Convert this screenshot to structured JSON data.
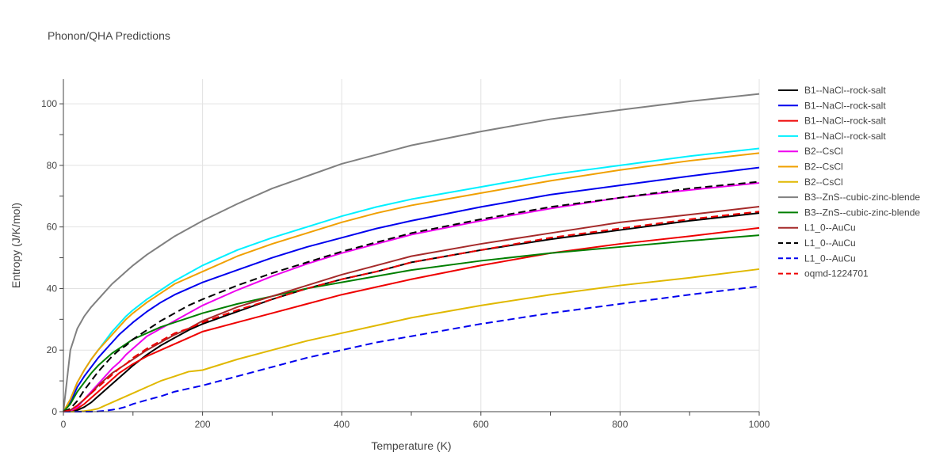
{
  "chart_data": {
    "type": "line",
    "title": "Phonon/QHA Predictions",
    "xlabel": "Temperature (K)",
    "ylabel": "Entropy (J/K/mol)",
    "xlim": [
      0,
      1000
    ],
    "ylim": [
      0,
      108
    ],
    "x_ticks": [
      0,
      200,
      400,
      600,
      800,
      1000
    ],
    "y_ticks": [
      0,
      20,
      40,
      60,
      80,
      100
    ],
    "grid": true,
    "legend_position": "right",
    "x": [
      0,
      10,
      20,
      30,
      40,
      50,
      60,
      70,
      80,
      90,
      100,
      120,
      140,
      160,
      180,
      200,
      250,
      300,
      350,
      400,
      450,
      500,
      600,
      700,
      800,
      900,
      1000
    ],
    "series": [
      {
        "name": "B1--NaCl--rock-salt",
        "color": "#000000",
        "dash": "solid",
        "values": [
          0,
          0.1,
          0.5,
          1.5,
          3.0,
          5.0,
          7.0,
          9.0,
          11.0,
          13.0,
          15.0,
          18.5,
          21.5,
          24.0,
          26.5,
          28.5,
          32.5,
          36.5,
          40.0,
          43.0,
          45.5,
          48.5,
          52.5,
          56.0,
          59.0,
          62.0,
          64.5
        ]
      },
      {
        "name": "B1--NaCl--rock-salt",
        "color": "#0000ee",
        "dash": "solid",
        "values": [
          0,
          3.0,
          8.0,
          11.5,
          14.5,
          17.5,
          20.0,
          22.5,
          25.0,
          27.0,
          29.0,
          32.5,
          35.5,
          38.0,
          40.0,
          42.0,
          46.0,
          50.0,
          53.5,
          56.5,
          59.5,
          62.0,
          66.5,
          70.5,
          73.5,
          76.5,
          79.3
        ]
      },
      {
        "name": "B1--NaCl--rock-salt",
        "color": "#ee0000",
        "dash": "solid",
        "values": [
          0,
          0.2,
          1.0,
          2.5,
          4.5,
          6.5,
          8.5,
          10.5,
          12.5,
          14.0,
          15.5,
          18.0,
          20.0,
          22.0,
          24.0,
          26.0,
          29.0,
          32.0,
          35.0,
          38.0,
          40.5,
          43.0,
          47.5,
          51.5,
          54.5,
          57.0,
          59.7
        ]
      },
      {
        "name": "B1--NaCl--rock-salt",
        "color": "#00f0ff",
        "dash": "solid",
        "values": [
          0,
          4.0,
          9.5,
          13.5,
          17.0,
          20.0,
          23.0,
          26.0,
          28.5,
          31.0,
          33.0,
          36.5,
          39.5,
          42.5,
          45.0,
          47.5,
          52.5,
          56.5,
          60.0,
          63.5,
          66.5,
          69.0,
          73.0,
          77.0,
          80.0,
          83.0,
          85.5
        ]
      },
      {
        "name": "B2--CsCl",
        "color": "#ee00ee",
        "dash": "solid",
        "values": [
          0,
          0.3,
          1.5,
          4.0,
          6.5,
          9.0,
          11.5,
          14.0,
          16.0,
          18.5,
          20.5,
          24.5,
          27.0,
          29.5,
          32.0,
          34.5,
          39.5,
          44.0,
          48.0,
          51.5,
          54.5,
          57.5,
          62.0,
          66.0,
          69.5,
          72.0,
          74.3
        ]
      },
      {
        "name": "B2--CsCl",
        "color": "#f0a000",
        "dash": "solid",
        "values": [
          0,
          4.0,
          9.5,
          13.5,
          17.0,
          20.0,
          22.5,
          25.0,
          27.5,
          30.0,
          32.0,
          35.5,
          38.5,
          41.5,
          43.5,
          45.5,
          50.5,
          54.5,
          58.0,
          61.5,
          64.5,
          67.0,
          71.0,
          75.0,
          78.5,
          81.5,
          84.0
        ]
      },
      {
        "name": "B2--CsCl",
        "color": "#e0b800",
        "dash": "solid",
        "values": [
          0,
          0,
          0,
          0.2,
          0.5,
          1.0,
          2.0,
          3.0,
          4.0,
          5.0,
          6.0,
          8.0,
          10.0,
          11.5,
          13.0,
          13.5,
          17.0,
          20.0,
          23.0,
          25.5,
          28.0,
          30.5,
          34.5,
          38.0,
          41.0,
          43.5,
          46.3
        ]
      },
      {
        "name": "B3--ZnS--cubic-zinc-blende",
        "color": "#808080",
        "dash": "solid",
        "values": [
          0,
          20.0,
          27.0,
          31.0,
          34.0,
          36.5,
          39.0,
          41.5,
          43.5,
          45.5,
          47.5,
          51.0,
          54.0,
          57.0,
          59.5,
          62.0,
          67.5,
          72.5,
          76.5,
          80.5,
          83.5,
          86.5,
          91.0,
          95.0,
          98.0,
          100.8,
          103.2
        ]
      },
      {
        "name": "B3--ZnS--cubic-zinc-blende",
        "color": "#007f00",
        "dash": "solid",
        "values": [
          0,
          2.5,
          6.5,
          9.5,
          12.5,
          15.0,
          17.0,
          19.0,
          20.5,
          22.0,
          23.5,
          25.5,
          27.5,
          29.0,
          30.5,
          32.0,
          35.0,
          37.5,
          40.0,
          42.0,
          44.0,
          46.0,
          49.0,
          51.5,
          53.5,
          55.5,
          57.3
        ]
      },
      {
        "name": "L1_0--AuCu",
        "color": "#a52a2a",
        "dash": "solid",
        "values": [
          0,
          0.5,
          2.0,
          4.0,
          6.0,
          8.5,
          10.5,
          12.5,
          14.0,
          15.5,
          17.0,
          20.0,
          22.5,
          25.0,
          27.0,
          29.5,
          34.0,
          37.5,
          41.0,
          44.5,
          47.5,
          50.5,
          54.5,
          58.0,
          61.5,
          64.0,
          66.6
        ]
      },
      {
        "name": "L1_0--AuCu",
        "color": "#000000",
        "dash": "dash",
        "values": [
          0,
          1.0,
          3.5,
          7.0,
          10.0,
          13.0,
          15.5,
          18.0,
          20.0,
          21.5,
          23.5,
          26.5,
          29.5,
          32.0,
          34.5,
          36.5,
          41.0,
          45.0,
          48.5,
          52.0,
          55.0,
          58.0,
          62.5,
          66.5,
          69.5,
          72.5,
          74.7
        ]
      },
      {
        "name": "L1_0--AuCu",
        "color": "#0000ee",
        "dash": "dash",
        "values": [
          0,
          0,
          0,
          0,
          0,
          0.1,
          0.3,
          0.6,
          1.0,
          1.6,
          2.5,
          3.8,
          5.0,
          6.5,
          7.5,
          8.5,
          11.5,
          14.5,
          17.5,
          20.0,
          22.5,
          24.5,
          28.5,
          32.0,
          35.0,
          38.0,
          40.7
        ]
      },
      {
        "name": "oqmd-1224701",
        "color": "#ee0000",
        "dash": "dash",
        "values": [
          0,
          0.5,
          2.0,
          4.0,
          6.0,
          8.0,
          10.0,
          12.0,
          14.0,
          15.5,
          17.5,
          20.5,
          23.0,
          25.5,
          27.0,
          29.0,
          33.0,
          36.5,
          40.0,
          43.0,
          45.5,
          48.5,
          52.5,
          56.5,
          59.5,
          62.5,
          65.0
        ]
      }
    ]
  }
}
